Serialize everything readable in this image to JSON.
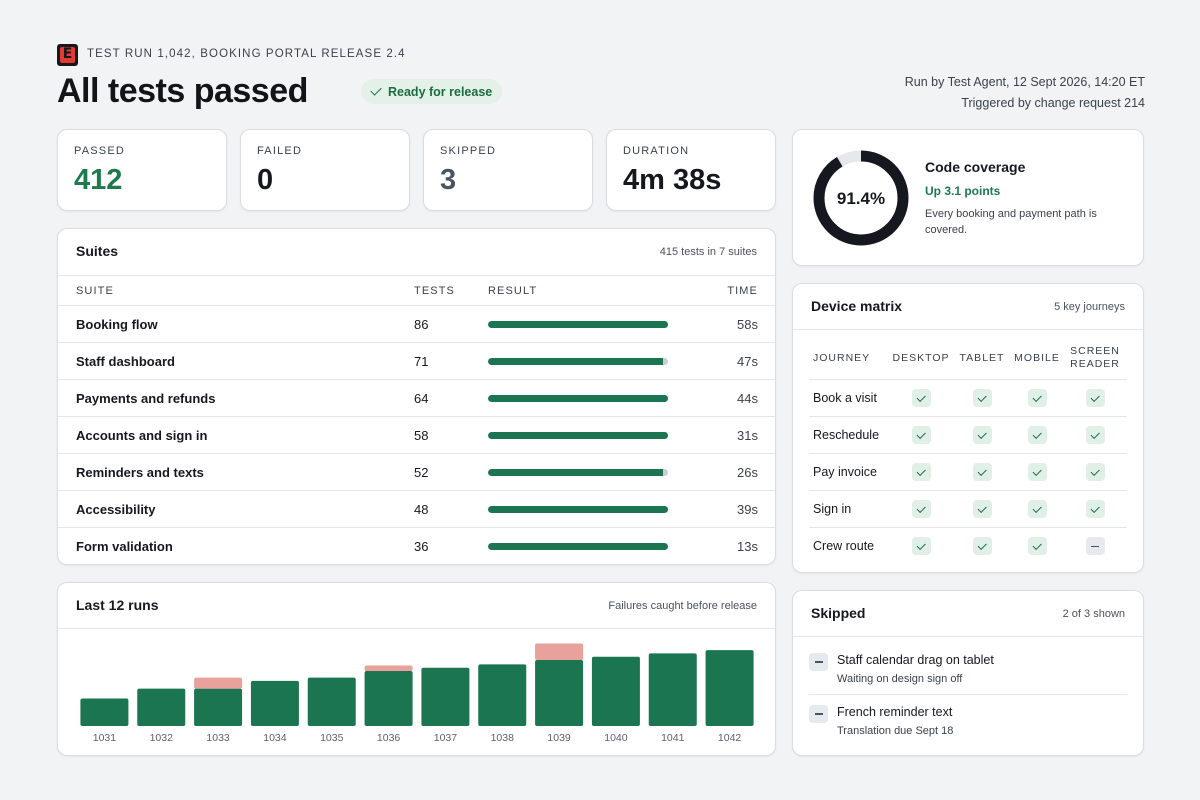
{
  "header": {
    "logo_letter": "E",
    "eyebrow": "TEST RUN 1,042, BOOKING PORTAL RELEASE 2.4",
    "title": "All tests passed",
    "badge": "Ready for release",
    "run_by": "Run by Test Agent, 12 Sept 2026, 14:20 ET",
    "triggered": "Triggered by change request 214"
  },
  "stats": [
    {
      "label": "PASSED",
      "value": "412",
      "color": "#1c7a4d"
    },
    {
      "label": "FAILED",
      "value": "0",
      "color": "#15191f"
    },
    {
      "label": "SKIPPED",
      "value": "3",
      "color": "#4a5563"
    },
    {
      "label": "DURATION",
      "value": "4m 38s",
      "color": "#15191f"
    }
  ],
  "suites": {
    "title": "Suites",
    "note": "415 tests in 7 suites",
    "columns": [
      "SUITE",
      "TESTS",
      "RESULT",
      "TIME"
    ],
    "rows": [
      {
        "name": "Booking flow",
        "tests": "86",
        "pass_fraction": 1.0,
        "time": "58s"
      },
      {
        "name": "Staff dashboard",
        "tests": "71",
        "pass_fraction": 0.97,
        "time": "47s"
      },
      {
        "name": "Payments and refunds",
        "tests": "64",
        "pass_fraction": 1.0,
        "time": "44s"
      },
      {
        "name": "Accounts and sign in",
        "tests": "58",
        "pass_fraction": 1.0,
        "time": "31s"
      },
      {
        "name": "Reminders and texts",
        "tests": "52",
        "pass_fraction": 0.97,
        "time": "26s"
      },
      {
        "name": "Accessibility",
        "tests": "48",
        "pass_fraction": 1.0,
        "time": "39s"
      },
      {
        "name": "Form validation",
        "tests": "36",
        "pass_fraction": 1.0,
        "time": "13s"
      }
    ]
  },
  "runs": {
    "title": "Last 12 runs",
    "note": "Failures caught before release"
  },
  "chart_data": {
    "type": "bar",
    "categories": [
      "1031",
      "1032",
      "1033",
      "1034",
      "1035",
      "1036",
      "1037",
      "1038",
      "1039",
      "1040",
      "1041",
      "1042"
    ],
    "series": [
      {
        "values": [
          25,
          34,
          34,
          41,
          44,
          50,
          53,
          56,
          60,
          63,
          66,
          69
        ]
      },
      {
        "values": [
          0,
          0,
          10,
          0,
          0,
          5,
          0,
          0,
          15,
          0,
          0,
          0
        ]
      }
    ],
    "colors": [
      "#1b7550",
      "#e8a19b"
    ],
    "ylim": [
      0,
      80
    ]
  },
  "coverage": {
    "value_text": "91.4%",
    "fraction": 0.914,
    "title": "Code coverage",
    "delta": "Up 3.1 points",
    "desc": "Every booking and payment path is covered.",
    "ring_color": "#15191f",
    "track_color": "#e4e8ec"
  },
  "matrix": {
    "title": "Device matrix",
    "note": "5 key journeys",
    "columns": [
      "JOURNEY",
      "DESKTOP",
      "TABLET",
      "MOBILE",
      "SCREEN READER"
    ],
    "rows": [
      {
        "journey": "Book a visit",
        "cells": [
          "pass",
          "pass",
          "pass",
          "pass"
        ]
      },
      {
        "journey": "Reschedule",
        "cells": [
          "pass",
          "pass",
          "pass",
          "pass"
        ]
      },
      {
        "journey": "Pay invoice",
        "cells": [
          "pass",
          "pass",
          "pass",
          "pass"
        ]
      },
      {
        "journey": "Sign in",
        "cells": [
          "pass",
          "pass",
          "pass",
          "pass"
        ]
      },
      {
        "journey": "Crew route",
        "cells": [
          "pass",
          "pass",
          "pass",
          "skip"
        ]
      }
    ]
  },
  "skipped": {
    "title": "Skipped",
    "note": "2 of 3 shown",
    "items": [
      {
        "title": "Staff calendar drag on tablet",
        "sub": "Waiting on design sign off"
      },
      {
        "title": "French reminder text",
        "sub": "Translation due Sept 18"
      }
    ]
  }
}
